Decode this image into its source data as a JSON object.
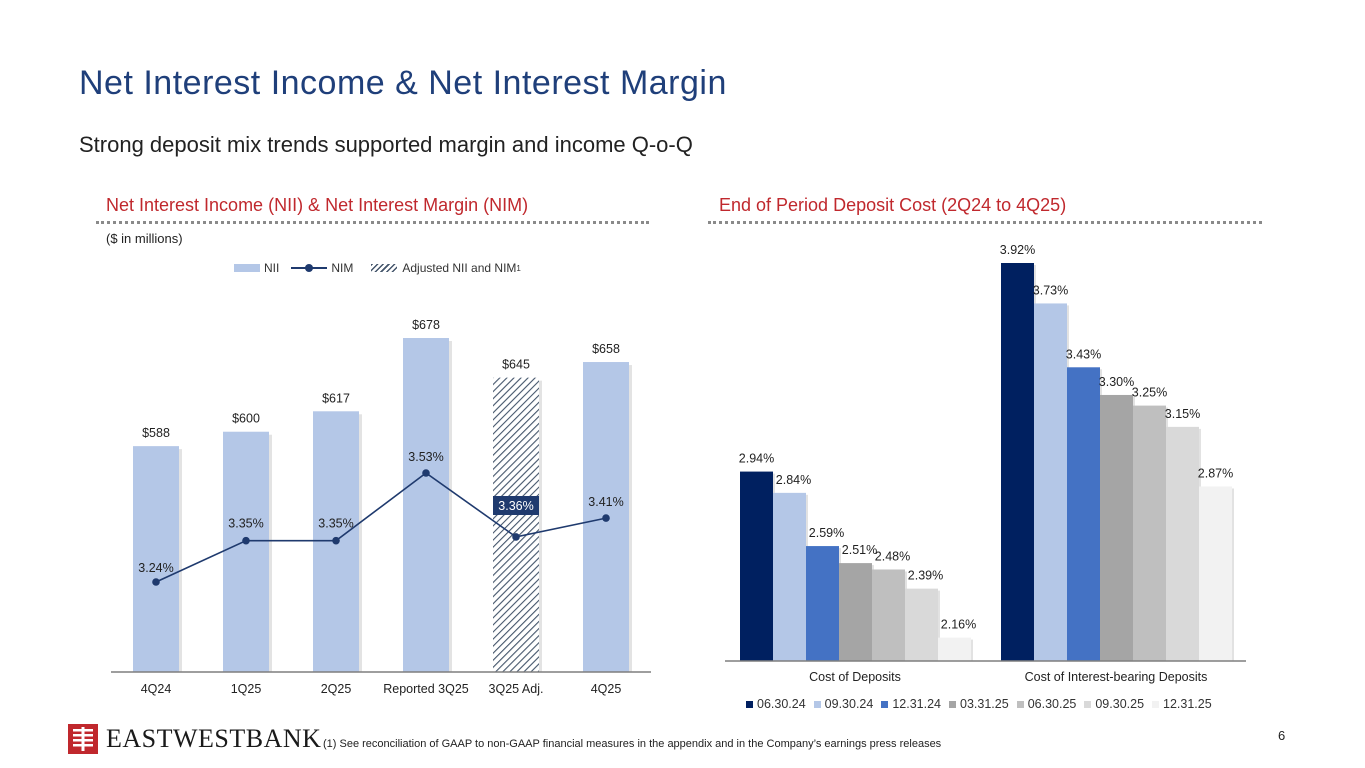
{
  "header": {
    "title": "Net Interest Income & Net Interest Margin",
    "subtitle": "Strong deposit mix trends supported margin and income Q-o-Q"
  },
  "left_panel": {
    "title": "Net Interest Income (NII) & Net Interest Margin (NIM)",
    "units": "($ in millions)",
    "legend": {
      "nii": "NII",
      "nim": "NIM",
      "adjusted": "Adjusted NII and NIM",
      "adjusted_sup": "1"
    }
  },
  "right_panel": {
    "title": "End of Period Deposit Cost (2Q24 to 4Q25)"
  },
  "colors": {
    "title_blue": "#1f3f7a",
    "section_red": "#c0282d",
    "nii_bar": "#b4c7e7",
    "nim_line": "#1f3a6e",
    "hatch": "#44556b",
    "highlight_label": "#1f3a6e"
  },
  "chart_data": [
    {
      "type": "bar",
      "title": "Net Interest Income (NII) & Net Interest Margin (NIM)",
      "ylabel": "$ in millions",
      "categories": [
        "4Q24",
        "1Q25",
        "2Q25",
        "Reported 3Q25",
        "3Q25 Adj.",
        "4Q25"
      ],
      "series": [
        {
          "name": "NII",
          "values": [
            588,
            600,
            617,
            678,
            645,
            658
          ],
          "labels": [
            "$588",
            "$600",
            "$617",
            "$678",
            "$645",
            "$658"
          ],
          "hatched": [
            false,
            false,
            false,
            false,
            true,
            false
          ]
        },
        {
          "name": "NIM",
          "type": "line",
          "values": [
            3.24,
            3.35,
            3.35,
            3.53,
            3.36,
            3.41
          ],
          "labels": [
            "3.24%",
            "3.35%",
            "3.35%",
            "3.53%",
            "3.36%",
            "3.41%"
          ],
          "highlighted": [
            false,
            false,
            false,
            false,
            true,
            false
          ]
        }
      ],
      "ylim": [
        400,
        700
      ],
      "nim_ylim": [
        2.6,
        3.9
      ]
    },
    {
      "type": "bar",
      "title": "End of Period Deposit Cost (2Q24 to 4Q25)",
      "categories": [
        "Cost of Deposits",
        "Cost of Interest-bearing Deposits"
      ],
      "series": [
        {
          "name": "06.30.24",
          "color": "#002060",
          "values": [
            2.94,
            3.92
          ],
          "labels": [
            "2.94%",
            "3.92%"
          ]
        },
        {
          "name": "09.30.24",
          "color": "#b4c7e7",
          "values": [
            2.84,
            3.73
          ],
          "labels": [
            "2.84%",
            "3.73%"
          ]
        },
        {
          "name": "12.31.24",
          "color": "#4472c4",
          "values": [
            2.59,
            3.43
          ],
          "labels": [
            "2.59%",
            "3.43%"
          ]
        },
        {
          "name": "03.31.25",
          "color": "#a5a5a5",
          "values": [
            2.51,
            3.3
          ],
          "labels": [
            "2.51%",
            "3.30%"
          ]
        },
        {
          "name": "06.30.25",
          "color": "#bfbfbf",
          "values": [
            2.48,
            3.25
          ],
          "labels": [
            "2.48%",
            "3.25%"
          ]
        },
        {
          "name": "09.30.25",
          "color": "#d9d9d9",
          "values": [
            2.39,
            3.15
          ],
          "labels": [
            "2.39%",
            "3.15%"
          ]
        },
        {
          "name": "12.31.25",
          "color": "#f2f2f2",
          "values": [
            2.16,
            2.87
          ],
          "labels": [
            "2.16%",
            "2.87%"
          ]
        }
      ],
      "ylim": [
        2.05,
        3.95
      ]
    }
  ],
  "footer": {
    "logo_text": "EASTWESTBANK",
    "footnote": "(1)   See reconciliation of GAAP to non-GAAP financial measures in the appendix and in the Company’s earnings press releases",
    "page_number": "6"
  }
}
